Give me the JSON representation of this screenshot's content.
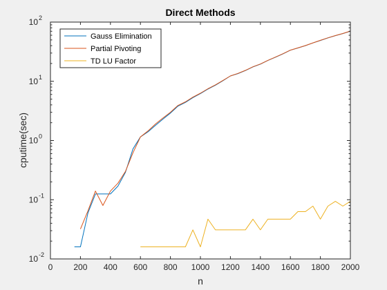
{
  "chart_data": {
    "type": "line",
    "title": "Direct Methods",
    "xlabel": "n",
    "ylabel": "cputime(sec)",
    "xlim": [
      0,
      2000
    ],
    "ylim": [
      0.01,
      100
    ],
    "yscale": "log",
    "grid": false,
    "legend_position": "top-left",
    "x_ticks": [
      "0",
      "200",
      "400",
      "600",
      "800",
      "1000",
      "1200",
      "1400",
      "1600",
      "1800",
      "2000"
    ],
    "y_ticks": [
      {
        "base": "10",
        "exp": "-2"
      },
      {
        "base": "10",
        "exp": "-1"
      },
      {
        "base": "10",
        "exp": "0"
      },
      {
        "base": "10",
        "exp": "1"
      },
      {
        "base": "10",
        "exp": "2"
      }
    ],
    "series": [
      {
        "name": "Gauss Elimination",
        "color": "#0072BD",
        "x": [
          160,
          200,
          250,
          300,
          350,
          400,
          450,
          500,
          550,
          600,
          650,
          700,
          750,
          800,
          850,
          900,
          950,
          1000,
          1050,
          1100,
          1150,
          1200,
          1250,
          1300,
          1350,
          1400,
          1450,
          1500,
          1550,
          1600,
          1650,
          1700,
          1750,
          1800,
          1850,
          1900,
          1950,
          2000
        ],
        "y": [
          0.016,
          0.016,
          0.06,
          0.125,
          0.125,
          0.125,
          0.17,
          0.29,
          0.72,
          1.15,
          1.4,
          1.8,
          2.3,
          2.9,
          3.8,
          4.4,
          5.3,
          6.2,
          7.4,
          8.6,
          10.2,
          12.3,
          13.5,
          15.2,
          17.5,
          19.5,
          22.5,
          25.5,
          29.0,
          33.5,
          36.5,
          40.0,
          44.5,
          49.0,
          54.0,
          59.0,
          64.0,
          70.0
        ]
      },
      {
        "name": "Partial Pivoting",
        "color": "#D95319",
        "x": [
          200,
          250,
          300,
          350,
          400,
          450,
          500,
          550,
          600,
          650,
          700,
          750,
          800,
          850,
          900,
          950,
          1000,
          1050,
          1100,
          1150,
          1200,
          1250,
          1300,
          1350,
          1400,
          1450,
          1500,
          1550,
          1600,
          1650,
          1700,
          1750,
          1800,
          1850,
          1900,
          1950,
          2000
        ],
        "y": [
          0.032,
          0.065,
          0.14,
          0.08,
          0.14,
          0.19,
          0.3,
          0.62,
          1.15,
          1.45,
          1.9,
          2.4,
          3.0,
          3.9,
          4.5,
          5.4,
          6.3,
          7.5,
          8.7,
          10.3,
          12.3,
          13.6,
          15.3,
          17.6,
          19.6,
          22.6,
          25.6,
          29.2,
          33.6,
          36.6,
          40.1,
          44.6,
          49.2,
          54.2,
          59.2,
          64.2,
          70.5
        ]
      },
      {
        "name": "TD LU Factor",
        "color": "#EDB120",
        "x": [
          600,
          650,
          700,
          750,
          800,
          850,
          900,
          950,
          1000,
          1050,
          1100,
          1150,
          1200,
          1250,
          1300,
          1350,
          1400,
          1450,
          1500,
          1550,
          1600,
          1650,
          1700,
          1750,
          1800,
          1850,
          1900,
          1950,
          2000
        ],
        "y": [
          0.016,
          0.016,
          0.016,
          0.016,
          0.016,
          0.016,
          0.016,
          0.031,
          0.016,
          0.047,
          0.031,
          0.031,
          0.031,
          0.031,
          0.031,
          0.047,
          0.031,
          0.047,
          0.047,
          0.047,
          0.047,
          0.063,
          0.063,
          0.078,
          0.047,
          0.078,
          0.094,
          0.078,
          0.094
        ]
      }
    ]
  }
}
